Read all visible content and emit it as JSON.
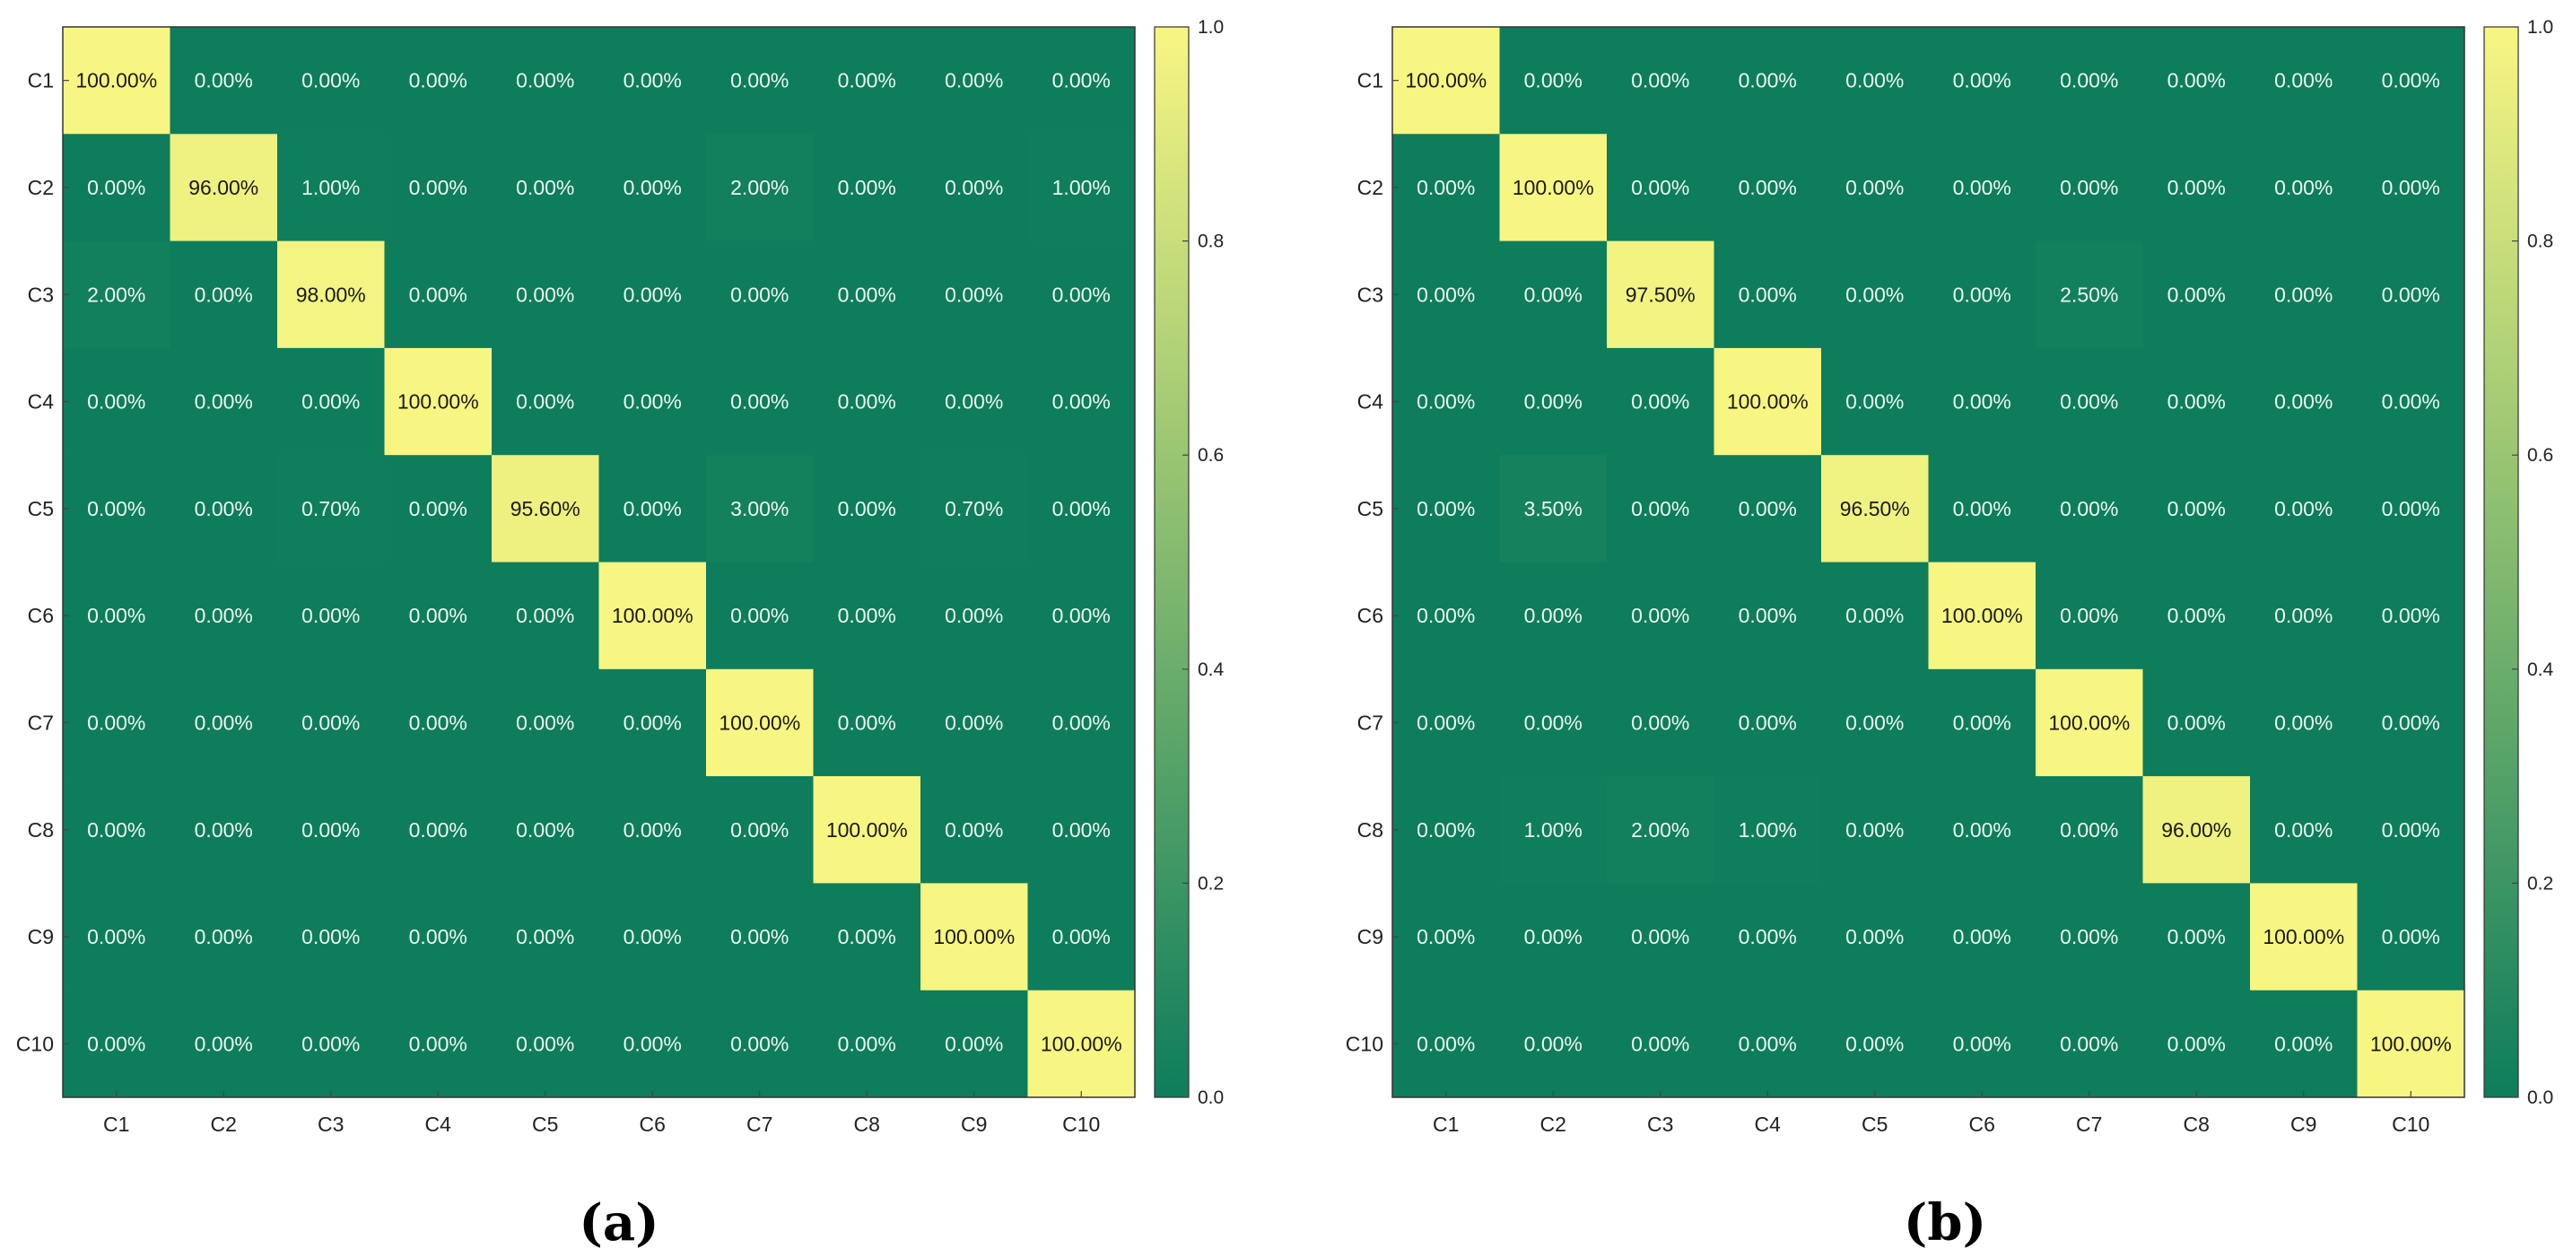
{
  "colors": {
    "low": "#0d7d5c",
    "high": "#f8f682",
    "frame": "#333333"
  },
  "chart_data": [
    {
      "type": "heatmap",
      "panel_label": "(a)",
      "categories": [
        "C1",
        "C2",
        "C3",
        "C4",
        "C5",
        "C6",
        "C7",
        "C8",
        "C9",
        "C10"
      ],
      "colorbar_ticks": [
        "0.0",
        "0.2",
        "0.4",
        "0.6",
        "0.8",
        "1.0"
      ],
      "colorbar_range": [
        0,
        1
      ],
      "values": [
        [
          1.0,
          0.0,
          0.0,
          0.0,
          0.0,
          0.0,
          0.0,
          0.0,
          0.0,
          0.0
        ],
        [
          0.0,
          0.96,
          0.01,
          0.0,
          0.0,
          0.0,
          0.02,
          0.0,
          0.0,
          0.01
        ],
        [
          0.02,
          0.0,
          0.98,
          0.0,
          0.0,
          0.0,
          0.0,
          0.0,
          0.0,
          0.0
        ],
        [
          0.0,
          0.0,
          0.0,
          1.0,
          0.0,
          0.0,
          0.0,
          0.0,
          0.0,
          0.0
        ],
        [
          0.0,
          0.0,
          0.007,
          0.0,
          0.956,
          0.0,
          0.03,
          0.0,
          0.007,
          0.0
        ],
        [
          0.0,
          0.0,
          0.0,
          0.0,
          0.0,
          1.0,
          0.0,
          0.0,
          0.0,
          0.0
        ],
        [
          0.0,
          0.0,
          0.0,
          0.0,
          0.0,
          0.0,
          1.0,
          0.0,
          0.0,
          0.0
        ],
        [
          0.0,
          0.0,
          0.0,
          0.0,
          0.0,
          0.0,
          0.0,
          1.0,
          0.0,
          0.0
        ],
        [
          0.0,
          0.0,
          0.0,
          0.0,
          0.0,
          0.0,
          0.0,
          0.0,
          1.0,
          0.0
        ],
        [
          0.0,
          0.0,
          0.0,
          0.0,
          0.0,
          0.0,
          0.0,
          0.0,
          0.0,
          1.0
        ]
      ],
      "cell_labels": [
        [
          "100.00%",
          "0.00%",
          "0.00%",
          "0.00%",
          "0.00%",
          "0.00%",
          "0.00%",
          "0.00%",
          "0.00%",
          "0.00%"
        ],
        [
          "0.00%",
          "96.00%",
          "1.00%",
          "0.00%",
          "0.00%",
          "0.00%",
          "2.00%",
          "0.00%",
          "0.00%",
          "1.00%"
        ],
        [
          "2.00%",
          "0.00%",
          "98.00%",
          "0.00%",
          "0.00%",
          "0.00%",
          "0.00%",
          "0.00%",
          "0.00%",
          "0.00%"
        ],
        [
          "0.00%",
          "0.00%",
          "0.00%",
          "100.00%",
          "0.00%",
          "0.00%",
          "0.00%",
          "0.00%",
          "0.00%",
          "0.00%"
        ],
        [
          "0.00%",
          "0.00%",
          "0.70%",
          "0.00%",
          "95.60%",
          "0.00%",
          "3.00%",
          "0.00%",
          "0.70%",
          "0.00%"
        ],
        [
          "0.00%",
          "0.00%",
          "0.00%",
          "0.00%",
          "0.00%",
          "100.00%",
          "0.00%",
          "0.00%",
          "0.00%",
          "0.00%"
        ],
        [
          "0.00%",
          "0.00%",
          "0.00%",
          "0.00%",
          "0.00%",
          "0.00%",
          "100.00%",
          "0.00%",
          "0.00%",
          "0.00%"
        ],
        [
          "0.00%",
          "0.00%",
          "0.00%",
          "0.00%",
          "0.00%",
          "0.00%",
          "0.00%",
          "100.00%",
          "0.00%",
          "0.00%"
        ],
        [
          "0.00%",
          "0.00%",
          "0.00%",
          "0.00%",
          "0.00%",
          "0.00%",
          "0.00%",
          "0.00%",
          "100.00%",
          "0.00%"
        ],
        [
          "0.00%",
          "0.00%",
          "0.00%",
          "0.00%",
          "0.00%",
          "0.00%",
          "0.00%",
          "0.00%",
          "0.00%",
          "100.00%"
        ]
      ]
    },
    {
      "type": "heatmap",
      "panel_label": "(b)",
      "categories": [
        "C1",
        "C2",
        "C3",
        "C4",
        "C5",
        "C6",
        "C7",
        "C8",
        "C9",
        "C10"
      ],
      "colorbar_ticks": [
        "0.0",
        "0.2",
        "0.4",
        "0.6",
        "0.8",
        "1.0"
      ],
      "colorbar_range": [
        0,
        1
      ],
      "values": [
        [
          1.0,
          0.0,
          0.0,
          0.0,
          0.0,
          0.0,
          0.0,
          0.0,
          0.0,
          0.0
        ],
        [
          0.0,
          1.0,
          0.0,
          0.0,
          0.0,
          0.0,
          0.0,
          0.0,
          0.0,
          0.0
        ],
        [
          0.0,
          0.0,
          0.975,
          0.0,
          0.0,
          0.0,
          0.025,
          0.0,
          0.0,
          0.0
        ],
        [
          0.0,
          0.0,
          0.0,
          1.0,
          0.0,
          0.0,
          0.0,
          0.0,
          0.0,
          0.0
        ],
        [
          0.0,
          0.035,
          0.0,
          0.0,
          0.965,
          0.0,
          0.0,
          0.0,
          0.0,
          0.0
        ],
        [
          0.0,
          0.0,
          0.0,
          0.0,
          0.0,
          1.0,
          0.0,
          0.0,
          0.0,
          0.0
        ],
        [
          0.0,
          0.0,
          0.0,
          0.0,
          0.0,
          0.0,
          1.0,
          0.0,
          0.0,
          0.0
        ],
        [
          0.0,
          0.01,
          0.02,
          0.01,
          0.0,
          0.0,
          0.0,
          0.96,
          0.0,
          0.0
        ],
        [
          0.0,
          0.0,
          0.0,
          0.0,
          0.0,
          0.0,
          0.0,
          0.0,
          1.0,
          0.0
        ],
        [
          0.0,
          0.0,
          0.0,
          0.0,
          0.0,
          0.0,
          0.0,
          0.0,
          0.0,
          1.0
        ]
      ],
      "cell_labels": [
        [
          "100.00%",
          "0.00%",
          "0.00%",
          "0.00%",
          "0.00%",
          "0.00%",
          "0.00%",
          "0.00%",
          "0.00%",
          "0.00%"
        ],
        [
          "0.00%",
          "100.00%",
          "0.00%",
          "0.00%",
          "0.00%",
          "0.00%",
          "0.00%",
          "0.00%",
          "0.00%",
          "0.00%"
        ],
        [
          "0.00%",
          "0.00%",
          "97.50%",
          "0.00%",
          "0.00%",
          "0.00%",
          "2.50%",
          "0.00%",
          "0.00%",
          "0.00%"
        ],
        [
          "0.00%",
          "0.00%",
          "0.00%",
          "100.00%",
          "0.00%",
          "0.00%",
          "0.00%",
          "0.00%",
          "0.00%",
          "0.00%"
        ],
        [
          "0.00%",
          "3.50%",
          "0.00%",
          "0.00%",
          "96.50%",
          "0.00%",
          "0.00%",
          "0.00%",
          "0.00%",
          "0.00%"
        ],
        [
          "0.00%",
          "0.00%",
          "0.00%",
          "0.00%",
          "0.00%",
          "100.00%",
          "0.00%",
          "0.00%",
          "0.00%",
          "0.00%"
        ],
        [
          "0.00%",
          "0.00%",
          "0.00%",
          "0.00%",
          "0.00%",
          "0.00%",
          "100.00%",
          "0.00%",
          "0.00%",
          "0.00%"
        ],
        [
          "0.00%",
          "1.00%",
          "2.00%",
          "1.00%",
          "0.00%",
          "0.00%",
          "0.00%",
          "96.00%",
          "0.00%",
          "0.00%"
        ],
        [
          "0.00%",
          "0.00%",
          "0.00%",
          "0.00%",
          "0.00%",
          "0.00%",
          "0.00%",
          "0.00%",
          "100.00%",
          "0.00%"
        ],
        [
          "0.00%",
          "0.00%",
          "0.00%",
          "0.00%",
          "0.00%",
          "0.00%",
          "0.00%",
          "0.00%",
          "0.00%",
          "100.00%"
        ]
      ]
    }
  ]
}
